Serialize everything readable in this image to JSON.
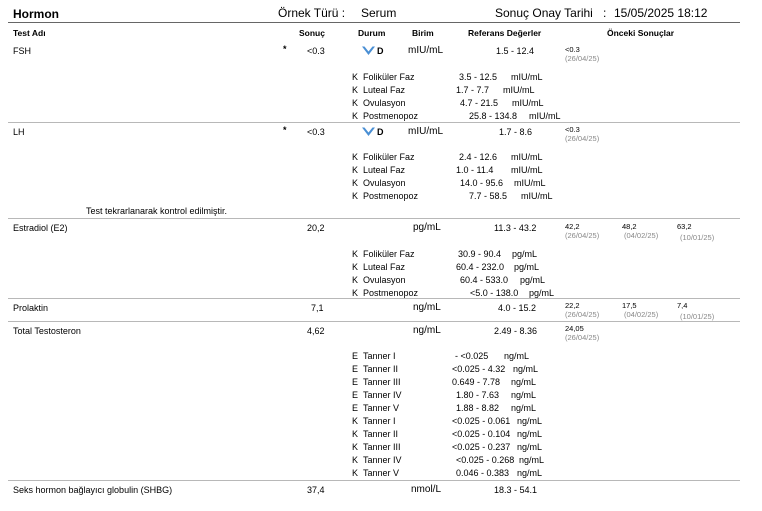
{
  "header": {
    "title": "Hormon",
    "sample_type_label": "Örnek Türü :",
    "sample_type_value": "Serum",
    "approval_label": "Sonuç Onay Tarihi",
    "approval_sep": ":",
    "approval_value": "15/05/2025 18:12"
  },
  "columns": {
    "test": "Test Adı",
    "result": "Sonuç",
    "status": "Durum",
    "unit": "Birim",
    "ref": "Referans Değerler",
    "previous": "Önceki Sonuçlar"
  },
  "tests": [
    {
      "name": "FSH",
      "flag": "*",
      "result": "<0.3",
      "status": "D",
      "status_icon": "chevron-down-icon",
      "unit": "mIU/mL",
      "ref": "1.5 - 12.4",
      "previous": [
        {
          "value": "<0.3",
          "date": "(26/04/25)"
        }
      ],
      "subrefs": [
        {
          "code": "K",
          "label": "Foliküler Faz",
          "range": "3.5 - 12.5",
          "unit": "mIU/mL"
        },
        {
          "code": "K",
          "label": "Luteal Faz",
          "range": "1.7 - 7.7",
          "unit": "mIU/mL"
        },
        {
          "code": "K",
          "label": "Ovulasyon",
          "range": "4.7 - 21.5",
          "unit": "mIU/mL"
        },
        {
          "code": "K",
          "label": "Postmenopoz",
          "range": "25.8 - 134.8",
          "unit": "mIU/mL"
        }
      ]
    },
    {
      "name": "LH",
      "flag": "*",
      "result": "<0.3",
      "status": "D",
      "status_icon": "chevron-down-icon",
      "unit": "mIU/mL",
      "ref": "1.7 - 8.6",
      "previous": [
        {
          "value": "<0.3",
          "date": "(26/04/25)"
        }
      ],
      "subrefs": [
        {
          "code": "K",
          "label": "Foliküler Faz",
          "range": "2.4 - 12.6",
          "unit": "mIU/mL"
        },
        {
          "code": "K",
          "label": "Luteal Faz",
          "range": "1.0 - 11.4",
          "unit": "mIU/mL"
        },
        {
          "code": "K",
          "label": "Ovulasyon",
          "range": "14.0 - 95.6",
          "unit": "mIU/mL"
        },
        {
          "code": "K",
          "label": "Postmenopoz",
          "range": "7.7 - 58.5",
          "unit": "mIU/mL"
        }
      ],
      "note": "Test tekrarlanarak kontrol edilmiştir."
    },
    {
      "name": "Estradiol (E2)",
      "flag": "",
      "result": "20,2",
      "status": "",
      "unit": "pg/mL",
      "ref": "11.3 - 43.2",
      "previous": [
        {
          "value": "42,2",
          "date": "(26/04/25)"
        },
        {
          "value": "48,2",
          "date": "(04/02/25)"
        },
        {
          "value": "63,2",
          "date": "(10/01/25)"
        }
      ],
      "subrefs": [
        {
          "code": "K",
          "label": "Foliküler Faz",
          "range": "30.9 - 90.4",
          "unit": "pg/mL"
        },
        {
          "code": "K",
          "label": "Luteal Faz",
          "range": "60.4 - 232.0",
          "unit": "pg/mL"
        },
        {
          "code": "K",
          "label": "Ovulasyon",
          "range": "60.4 - 533.0",
          "unit": "pg/mL"
        },
        {
          "code": "K",
          "label": "Postmenopoz",
          "range": "<5.0 - 138.0",
          "unit": "pg/mL"
        }
      ]
    },
    {
      "name": "Prolaktin",
      "flag": "",
      "result": "7,1",
      "status": "",
      "unit": "ng/mL",
      "ref": "4.0 - 15.2",
      "previous": [
        {
          "value": "22,2",
          "date": "(26/04/25)"
        },
        {
          "value": "17,5",
          "date": "(04/02/25)"
        },
        {
          "value": "7,4",
          "date": "(10/01/25)"
        }
      ],
      "subrefs": []
    },
    {
      "name": "Total Testosteron",
      "flag": "",
      "result": "4,62",
      "status": "",
      "unit": "ng/mL",
      "ref": "2.49 - 8.36",
      "previous": [
        {
          "value": "24,05",
          "date": "(26/04/25)"
        }
      ],
      "subrefs": [
        {
          "code": "E",
          "label": "Tanner I",
          "range": "- <0.025",
          "unit": "ng/mL"
        },
        {
          "code": "E",
          "label": "Tanner II",
          "range": "<0.025 - 4.32",
          "unit": "ng/mL"
        },
        {
          "code": "E",
          "label": "Tanner III",
          "range": "0.649 - 7.78",
          "unit": "ng/mL"
        },
        {
          "code": "E",
          "label": "Tanner IV",
          "range": "1.80 - 7.63",
          "unit": "ng/mL"
        },
        {
          "code": "E",
          "label": "Tanner V",
          "range": "1.88 - 8.82",
          "unit": "ng/mL"
        },
        {
          "code": "K",
          "label": "Tanner I",
          "range": "<0.025 - 0.061",
          "unit": "ng/mL"
        },
        {
          "code": "K",
          "label": "Tanner II",
          "range": "<0.025 - 0.104",
          "unit": "ng/mL"
        },
        {
          "code": "K",
          "label": "Tanner III",
          "range": "<0.025 - 0.237",
          "unit": "ng/mL"
        },
        {
          "code": "K",
          "label": "Tanner IV",
          "range": "<0.025 - 0.268",
          "unit": "ng/mL"
        },
        {
          "code": "K",
          "label": "Tanner V",
          "range": "0.046 - 0.383",
          "unit": "ng/mL"
        }
      ]
    },
    {
      "name": "Seks hormon bağlayıcı globulin (SHBG)",
      "flag": "",
      "result": "37,4",
      "status": "",
      "unit": "nmol/L",
      "ref": "18.3 - 54.1",
      "previous": [],
      "subrefs": []
    }
  ]
}
